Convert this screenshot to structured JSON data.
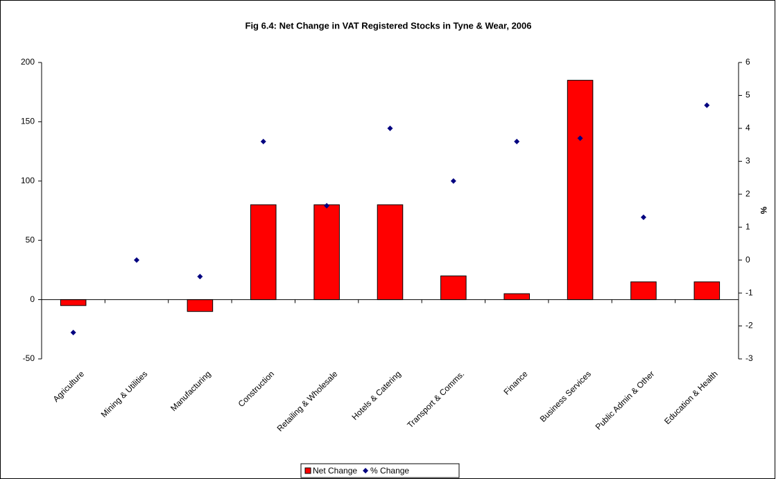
{
  "chart_data": {
    "type": "bar",
    "title": "Fig 6.4: Net Change in VAT Registered Stocks in Tyne & Wear, 2006",
    "categories": [
      "Agriculture",
      "Mining & Utilities",
      "Manufacturing",
      "Construction",
      "Retailing & Wholesale",
      "Hotels & Catering",
      "Transport & Comms.",
      "Finance",
      "Business Services",
      "Public Admin & Other",
      "Education & Health"
    ],
    "series": [
      {
        "name": "Net Change",
        "type": "bar",
        "color": "#ff0000",
        "values": [
          -5,
          0,
          -10,
          80,
          80,
          80,
          20,
          5,
          185,
          15,
          15
        ]
      },
      {
        "name": "% Change",
        "type": "scatter",
        "axis": "y2",
        "color": "#000080",
        "values": [
          -2.2,
          0.0,
          -0.5,
          3.6,
          1.65,
          4.0,
          2.4,
          3.6,
          3.7,
          1.3,
          4.7
        ]
      }
    ],
    "ylim": [
      -50,
      200
    ],
    "yticks": [
      -50,
      0,
      50,
      100,
      150,
      200
    ],
    "y2lim": [
      -3,
      6
    ],
    "y2ticks": [
      -3,
      -2,
      -1,
      0,
      1,
      2,
      3,
      4,
      5,
      6
    ],
    "y2label": "%",
    "legend": "bottom"
  }
}
